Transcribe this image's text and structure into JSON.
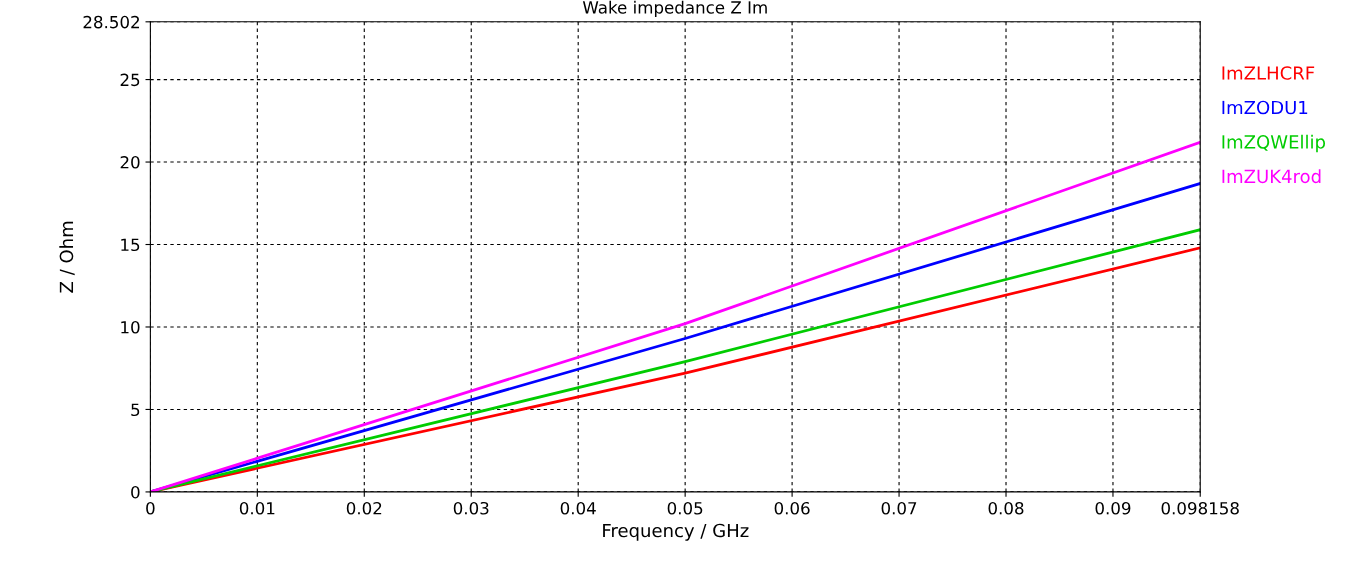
{
  "chart_data": {
    "type": "line",
    "title": "Wake impedance Z Im",
    "xlabel": "Frequency / GHz",
    "ylabel": "Z / Ohm",
    "x": [
      0,
      0.05,
      0.098158
    ],
    "series": [
      {
        "name": "ImZLHCRF",
        "color": "#ff0000",
        "values": [
          0,
          7.2,
          14.8
        ]
      },
      {
        "name": "ImZODU1",
        "color": "#0000ff",
        "values": [
          0,
          9.3,
          18.7
        ]
      },
      {
        "name": "ImZQWEllip",
        "color": "#00cc00",
        "values": [
          0,
          7.9,
          15.9
        ]
      },
      {
        "name": "ImZUK4rod",
        "color": "#ff00ff",
        "values": [
          0,
          10.2,
          21.2
        ]
      }
    ],
    "xlim": [
      0,
      0.098158
    ],
    "ylim": [
      0,
      28.502
    ],
    "xticks": [
      0,
      0.01,
      0.02,
      0.03,
      0.04,
      0.05,
      0.06,
      0.07,
      0.08,
      0.09,
      0.098158
    ],
    "yticks": [
      0,
      5,
      10,
      15,
      20,
      25,
      28.502
    ],
    "grid": true,
    "legend": "right",
    "line_style": "solid",
    "marker": "none"
  }
}
